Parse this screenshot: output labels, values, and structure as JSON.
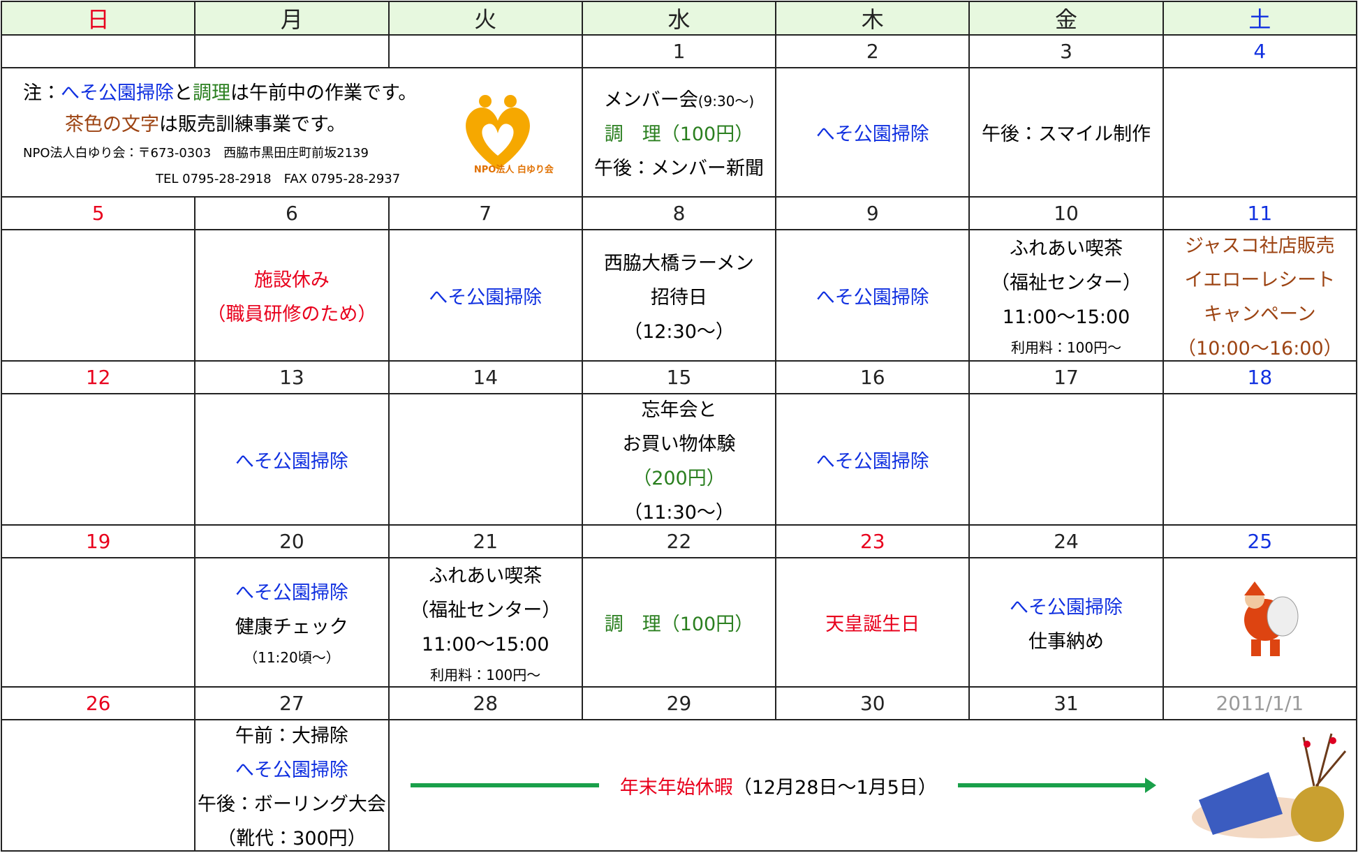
{
  "weekdays": [
    "日",
    "月",
    "火",
    "水",
    "木",
    "金",
    "土"
  ],
  "weekday_colors": [
    "#e8001c",
    "#222222",
    "#222222",
    "#222222",
    "#222222",
    "#222222",
    "#1030e0"
  ],
  "weeks": [
    {
      "dates": [
        null,
        null,
        null,
        "1",
        "2",
        "3",
        "4"
      ],
      "date_colors": [
        "#e8001c",
        "#222222",
        "#222222",
        "#222222",
        "#222222",
        "#222222",
        "#1030e0"
      ],
      "cells": [
        [
          [
            {
              "t": "注："
            },
            {
              "t": "へそ公園掃除",
              "c": "#1030e0"
            },
            {
              "t": "と"
            },
            {
              "t": "調理",
              "c": "#2a7f1f"
            },
            {
              "t": "は午前中の作業です。"
            }
          ],
          [
            {
              "t": "茶色の文字",
              "c": "#9c4312"
            },
            {
              "t": "は販売訓練事業です。"
            }
          ],
          [
            {
              "t": "NPO法人白ゆり会：〒673-0303　西脇市黒田庄町前坂2139",
              "s": true
            }
          ],
          [
            {
              "t": "TEL 0795-28-2918　FAX 0795-28-2937",
              "s": true
            }
          ]
        ],
        [
          [
            {
              "t": "メンバー会"
            },
            {
              "t": "(9:30～)",
              "s": true
            }
          ],
          [
            {
              "t": "調　理（100円）",
              "c": "#2a7f1f"
            }
          ],
          [
            {
              "t": "午後：メンバー新聞"
            }
          ]
        ],
        [
          [
            {
              "t": "へそ公園掃除",
              "c": "#1030e0"
            }
          ]
        ],
        [
          [
            {
              "t": "午後：スマイル制作"
            }
          ]
        ],
        []
      ]
    },
    {
      "dates": [
        "5",
        "6",
        "7",
        "8",
        "9",
        "10",
        "11"
      ],
      "date_colors": [
        "#e8001c",
        "#222222",
        "#222222",
        "#222222",
        "#222222",
        "#222222",
        "#1030e0"
      ],
      "cells": [
        [],
        [
          [
            {
              "t": "施設休み",
              "c": "#e8001c"
            }
          ],
          [
            {
              "t": "（職員研修のため）",
              "c": "#e8001c"
            }
          ]
        ],
        [
          [
            {
              "t": "へそ公園掃除",
              "c": "#1030e0"
            }
          ]
        ],
        [
          [
            {
              "t": "西脇大橋ラーメン"
            }
          ],
          [
            {
              "t": "招待日"
            }
          ],
          [
            {
              "t": "（12:30～）"
            }
          ]
        ],
        [
          [
            {
              "t": "へそ公園掃除",
              "c": "#1030e0"
            }
          ]
        ],
        [
          [
            {
              "t": "ふれあい喫茶"
            }
          ],
          [
            {
              "t": "（福祉センター）"
            }
          ],
          [
            {
              "t": "11:00～15:00"
            }
          ],
          [
            {
              "t": "利用料：100円～",
              "s": true
            }
          ]
        ],
        [
          [
            {
              "t": "ジャスコ社店販売",
              "c": "#9c4312"
            }
          ],
          [
            {
              "t": "イエローレシート",
              "c": "#9c4312"
            }
          ],
          [
            {
              "t": "キャンペーン",
              "c": "#9c4312"
            }
          ],
          [
            {
              "t": "（10:00～16:00）",
              "c": "#9c4312"
            }
          ]
        ]
      ]
    },
    {
      "dates": [
        "12",
        "13",
        "14",
        "15",
        "16",
        "17",
        "18"
      ],
      "date_colors": [
        "#e8001c",
        "#222222",
        "#222222",
        "#222222",
        "#222222",
        "#222222",
        "#1030e0"
      ],
      "cells": [
        [],
        [
          [
            {
              "t": "へそ公園掃除",
              "c": "#1030e0"
            }
          ]
        ],
        [],
        [
          [
            {
              "t": "忘年会と"
            }
          ],
          [
            {
              "t": "お買い物体験"
            }
          ],
          [
            {
              "t": "（200円）",
              "c": "#2a7f1f"
            }
          ],
          [
            {
              "t": "（11:30～）"
            }
          ]
        ],
        [
          [
            {
              "t": "へそ公園掃除",
              "c": "#1030e0"
            }
          ]
        ],
        [],
        []
      ]
    },
    {
      "dates": [
        "19",
        "20",
        "21",
        "22",
        "23",
        "24",
        "25"
      ],
      "date_colors": [
        "#e8001c",
        "#222222",
        "#222222",
        "#222222",
        "#e8001c",
        "#222222",
        "#1030e0"
      ],
      "cells": [
        [],
        [
          [
            {
              "t": "へそ公園掃除",
              "c": "#1030e0"
            }
          ],
          [
            {
              "t": "健康チェック"
            }
          ],
          [
            {
              "t": "（11:20頃～）",
              "s": true
            }
          ]
        ],
        [
          [
            {
              "t": "ふれあい喫茶"
            }
          ],
          [
            {
              "t": "（福祉センター）"
            }
          ],
          [
            {
              "t": "11:00～15:00"
            }
          ],
          [
            {
              "t": "利用料：100円～",
              "s": true
            }
          ]
        ],
        [
          [
            {
              "t": "調　理（100円）",
              "c": "#2a7f1f"
            }
          ]
        ],
        [
          [
            {
              "t": "天皇誕生日",
              "c": "#e8001c"
            }
          ]
        ],
        [
          [
            {
              "t": "へそ公園掃除",
              "c": "#1030e0"
            }
          ],
          [
            {
              "t": "仕事納め"
            }
          ]
        ],
        []
      ]
    },
    {
      "dates": [
        "26",
        "27",
        "28",
        "29",
        "30",
        "31",
        "2011/1/1"
      ],
      "date_colors": [
        "#e8001c",
        "#222222",
        "#222222",
        "#222222",
        "#222222",
        "#222222",
        "#999999"
      ],
      "cells": [
        [],
        [
          [
            {
              "t": "午前：大掃除"
            }
          ],
          [
            {
              "t": "へそ公園掃除",
              "c": "#1030e0"
            }
          ],
          [
            {
              "t": "午後：ボーリング大会"
            }
          ],
          [
            {
              "t": "（靴代：300円）"
            }
          ]
        ],
        [
          [
            {
              "t": "年末年始休暇",
              "c": "#e8001c"
            },
            {
              "t": "（12月28日～1月5日）"
            }
          ]
        ]
      ]
    }
  ],
  "logo_text": "NPO法人 白ゆり会"
}
